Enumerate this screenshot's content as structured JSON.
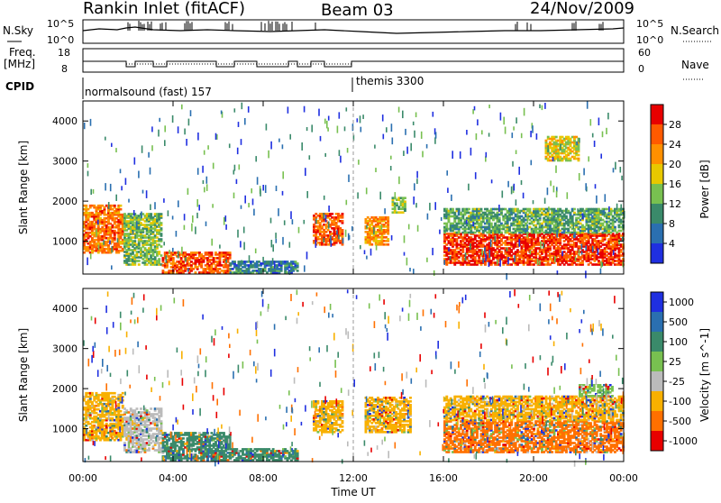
{
  "header": {
    "site": "Rankin Inlet (fitACF)",
    "beam": "Beam 03",
    "date": "24/Nov/2009"
  },
  "status_panels": {
    "nsky_label": "N.Sky",
    "nsearch_label": "N.Search",
    "noise_ticks_left": [
      "10^5",
      "10^0"
    ],
    "noise_ticks_right": [
      "10^5",
      "10^0"
    ],
    "freq_label_1": "Freq.",
    "freq_label_2": "[MHz]",
    "freq_ticks": [
      "18",
      "8"
    ],
    "nave_label": "Nave",
    "nave_ticks": [
      "60",
      "0"
    ],
    "cpid_label": "CPID",
    "cpid_1": "normalsound (fast) 157",
    "cpid_2": "themis 3300"
  },
  "chart_data": [
    {
      "type": "heatmap",
      "ylabel": "Slant Range [km]",
      "xlabel": "Time UT",
      "x_ticks": [
        "00:00",
        "04:00",
        "08:00",
        "12:00",
        "16:00",
        "20:00",
        "00:00"
      ],
      "y_ticks": [
        "1000",
        "2000",
        "3000",
        "4000"
      ],
      "xlim_hours": [
        0,
        24
      ],
      "ylim_km": [
        180,
        4500
      ],
      "colorbar_label": "Power [dB]",
      "colorbar_ticks": [
        "4",
        "8",
        "12",
        "16",
        "20",
        "24",
        "28"
      ],
      "colors": [
        "#1f2fe0",
        "#2a6fb0",
        "#3a8a6a",
        "#78c050",
        "#e8c800",
        "#ff9000",
        "#ff5a00",
        "#e80000"
      ],
      "regions": [
        {
          "t0": 0.0,
          "t1": 1.8,
          "r0": 700,
          "r1": 1900,
          "v": 24
        },
        {
          "t0": 1.8,
          "t1": 3.5,
          "r0": 400,
          "r1": 1700,
          "v": 14
        },
        {
          "t0": 3.5,
          "t1": 6.5,
          "r0": 200,
          "r1": 700,
          "v": 26
        },
        {
          "t0": 6.5,
          "t1": 9.5,
          "r0": 200,
          "r1": 500,
          "v": 8
        },
        {
          "t0": 10.2,
          "t1": 11.5,
          "r0": 900,
          "r1": 1700,
          "v": 26
        },
        {
          "t0": 12.5,
          "t1": 13.5,
          "r0": 900,
          "r1": 1600,
          "v": 22
        },
        {
          "t0": 13.7,
          "t1": 14.3,
          "r0": 1700,
          "r1": 2100,
          "v": 14
        },
        {
          "t0": 16.0,
          "t1": 24.0,
          "r0": 400,
          "r1": 1200,
          "v": 28
        },
        {
          "t0": 16.0,
          "t1": 24.0,
          "r0": 1200,
          "r1": 1800,
          "v": 12
        },
        {
          "t0": 20.5,
          "t1": 22.0,
          "r0": 3000,
          "r1": 3600,
          "v": 18
        }
      ]
    },
    {
      "type": "heatmap",
      "ylabel": "Slant Range [km]",
      "xlabel": "Time UT",
      "x_ticks": [
        "00:00",
        "04:00",
        "08:00",
        "12:00",
        "16:00",
        "20:00",
        "00:00"
      ],
      "y_ticks": [
        "1000",
        "2000",
        "3000",
        "4000"
      ],
      "xlim_hours": [
        0,
        24
      ],
      "ylim_km": [
        180,
        4500
      ],
      "colorbar_label": "Velocity [m s^-1]",
      "colorbar_ticks": [
        "1000",
        "500",
        "100",
        "25",
        "-25",
        "-100",
        "-500",
        "-1000"
      ],
      "colors": [
        "#1f2fe0",
        "#2a6fb0",
        "#3a8a6a",
        "#78c050",
        "#bbbbbb",
        "#f8b000",
        "#ff7000",
        "#e80000"
      ],
      "regions": [
        {
          "t0": 0.0,
          "t1": 1.8,
          "r0": 700,
          "r1": 1900,
          "v": -100
        },
        {
          "t0": 1.8,
          "t1": 3.5,
          "r0": 400,
          "r1": 1500,
          "v": -25
        },
        {
          "t0": 3.5,
          "t1": 6.5,
          "r0": 200,
          "r1": 900,
          "v": 100
        },
        {
          "t0": 6.5,
          "t1": 9.5,
          "r0": 200,
          "r1": 500,
          "v": 100
        },
        {
          "t0": 10.2,
          "t1": 11.5,
          "r0": 900,
          "r1": 1700,
          "v": -100
        },
        {
          "t0": 12.5,
          "t1": 14.5,
          "r0": 900,
          "r1": 1800,
          "v": -100
        },
        {
          "t0": 16.0,
          "t1": 24.0,
          "r0": 400,
          "r1": 1200,
          "v": -500
        },
        {
          "t0": 16.0,
          "t1": 24.0,
          "r0": 1200,
          "r1": 1800,
          "v": -100
        },
        {
          "t0": 22.0,
          "t1": 23.5,
          "r0": 1800,
          "r1": 2100,
          "v": 25
        }
      ]
    }
  ]
}
